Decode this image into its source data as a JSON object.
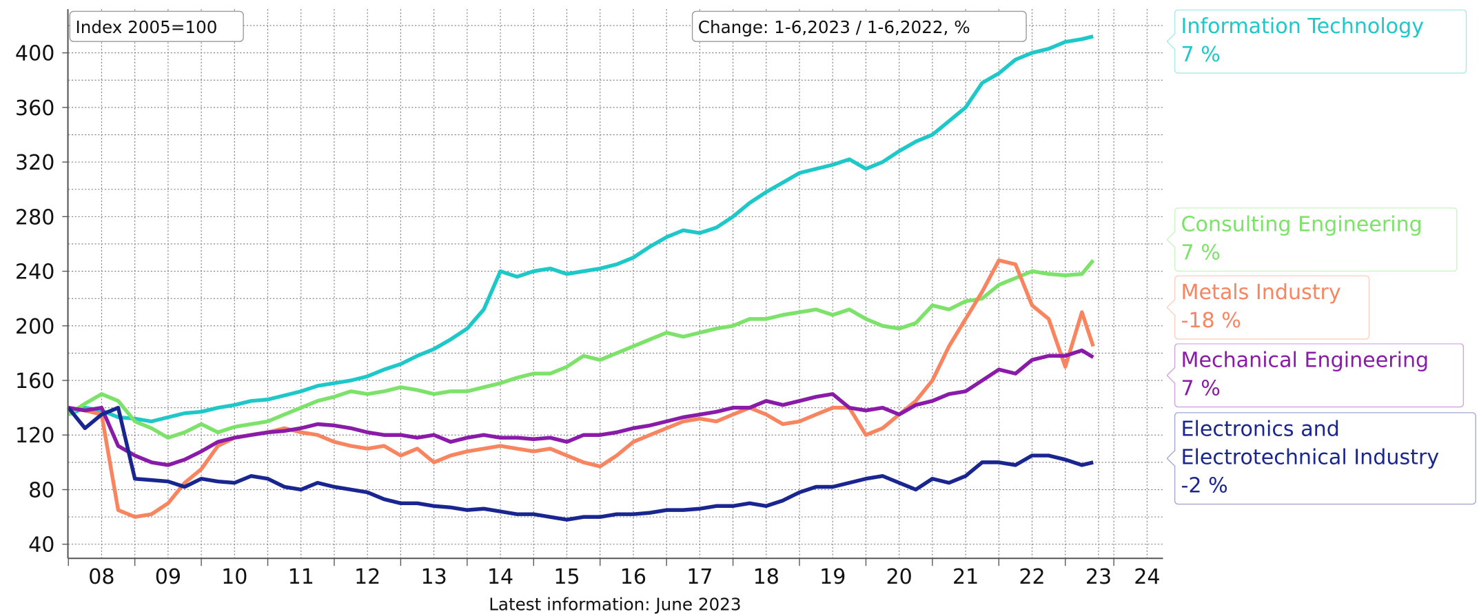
{
  "chart_data": {
    "type": "line",
    "annotations": [
      "Index 2005=100",
      "Change: 1-6,2023 / 1-6,2022, %"
    ],
    "xlabel": "Latest information: June 2023",
    "x": [
      2008,
      2008.25,
      2008.5,
      2008.75,
      2009,
      2009.25,
      2009.5,
      2009.75,
      2010,
      2010.25,
      2010.5,
      2010.75,
      2011,
      2011.25,
      2011.5,
      2011.75,
      2012,
      2012.25,
      2012.5,
      2012.75,
      2013,
      2013.25,
      2013.5,
      2013.75,
      2014,
      2014.25,
      2014.5,
      2014.75,
      2015,
      2015.25,
      2015.5,
      2015.75,
      2016,
      2016.25,
      2016.5,
      2016.75,
      2017,
      2017.25,
      2017.5,
      2017.75,
      2018,
      2018.25,
      2018.5,
      2018.75,
      2019,
      2019.25,
      2019.5,
      2019.75,
      2020,
      2020.25,
      2020.5,
      2020.75,
      2021,
      2021.25,
      2021.5,
      2021.75,
      2022,
      2022.25,
      2022.5,
      2022.75,
      2023,
      2023.25,
      2023.42
    ],
    "xlim": [
      2008,
      2024.47
    ],
    "xticks": [
      {
        "value": 2008.5,
        "label": "08"
      },
      {
        "value": 2009.5,
        "label": "09"
      },
      {
        "value": 2010.5,
        "label": "10"
      },
      {
        "value": 2011.5,
        "label": "11"
      },
      {
        "value": 2012.5,
        "label": "12"
      },
      {
        "value": 2013.5,
        "label": "13"
      },
      {
        "value": 2014.5,
        "label": "14"
      },
      {
        "value": 2015.5,
        "label": "15"
      },
      {
        "value": 2016.5,
        "label": "16"
      },
      {
        "value": 2017.5,
        "label": "17"
      },
      {
        "value": 2018.5,
        "label": "18"
      },
      {
        "value": 2019.5,
        "label": "19"
      },
      {
        "value": 2020.5,
        "label": "20"
      },
      {
        "value": 2021.5,
        "label": "21"
      },
      {
        "value": 2022.5,
        "label": "22"
      },
      {
        "value": 2023.5,
        "label": "23"
      },
      {
        "value": 2024.23,
        "label": "24"
      }
    ],
    "ylim": [
      30,
      432
    ],
    "yticks": [
      40,
      80,
      120,
      160,
      200,
      240,
      280,
      320,
      360,
      400
    ],
    "grid": true,
    "series": [
      {
        "name": "Information Technology",
        "change": "7 %",
        "color": "#1ec8c8",
        "values": [
          135,
          140,
          138,
          133,
          132,
          130,
          133,
          136,
          137,
          140,
          142,
          145,
          146,
          149,
          152,
          156,
          158,
          160,
          163,
          168,
          172,
          178,
          183,
          190,
          198,
          212,
          240,
          236,
          240,
          242,
          238,
          240,
          242,
          245,
          250,
          258,
          265,
          270,
          268,
          272,
          280,
          290,
          298,
          305,
          312,
          315,
          318,
          322,
          315,
          320,
          328,
          335,
          340,
          350,
          360,
          378,
          385,
          395,
          400,
          403,
          408,
          410,
          412
        ]
      },
      {
        "name": "Consulting Engineering",
        "change": "7 %",
        "color": "#7de26a",
        "values": [
          135,
          143,
          150,
          145,
          130,
          125,
          118,
          122,
          128,
          122,
          126,
          128,
          130,
          135,
          140,
          145,
          148,
          152,
          150,
          152,
          155,
          153,
          150,
          152,
          152,
          155,
          158,
          162,
          165,
          165,
          170,
          178,
          175,
          180,
          185,
          190,
          195,
          192,
          195,
          198,
          200,
          205,
          205,
          208,
          210,
          212,
          208,
          212,
          205,
          200,
          198,
          202,
          215,
          212,
          218,
          220,
          230,
          235,
          240,
          238,
          237,
          238,
          248
        ]
      },
      {
        "name": "Metals Industry",
        "change": "-18 %",
        "color": "#f8855f",
        "values": [
          140,
          138,
          135,
          65,
          60,
          62,
          70,
          85,
          95,
          112,
          118,
          120,
          122,
          125,
          122,
          120,
          115,
          112,
          110,
          112,
          105,
          110,
          100,
          105,
          108,
          110,
          112,
          110,
          108,
          110,
          105,
          100,
          97,
          105,
          115,
          120,
          125,
          130,
          132,
          130,
          135,
          140,
          135,
          128,
          130,
          135,
          140,
          140,
          120,
          125,
          135,
          145,
          160,
          185,
          205,
          225,
          248,
          245,
          215,
          205,
          170,
          210,
          185
        ]
      },
      {
        "name": "Mechanical Engineering",
        "change": "7 %",
        "color": "#8a1aa8",
        "values": [
          140,
          138,
          140,
          112,
          105,
          100,
          98,
          102,
          108,
          115,
          118,
          120,
          122,
          123,
          125,
          128,
          127,
          125,
          122,
          120,
          120,
          118,
          120,
          115,
          118,
          120,
          118,
          118,
          117,
          118,
          115,
          120,
          120,
          122,
          125,
          127,
          130,
          133,
          135,
          137,
          140,
          140,
          145,
          142,
          145,
          148,
          150,
          140,
          138,
          140,
          135,
          142,
          145,
          150,
          152,
          160,
          168,
          165,
          175,
          178,
          178,
          182,
          177
        ]
      },
      {
        "name": "Electronics and Electrotechnical Industry",
        "change": "-2 %",
        "color": "#1a2690",
        "values": [
          140,
          125,
          135,
          140,
          88,
          87,
          86,
          82,
          88,
          86,
          85,
          90,
          88,
          82,
          80,
          85,
          82,
          80,
          78,
          73,
          70,
          70,
          68,
          67,
          65,
          66,
          64,
          62,
          62,
          60,
          58,
          60,
          60,
          62,
          62,
          63,
          65,
          65,
          66,
          68,
          68,
          70,
          68,
          72,
          78,
          82,
          82,
          85,
          88,
          90,
          85,
          80,
          88,
          85,
          90,
          100,
          100,
          98,
          105,
          105,
          102,
          98,
          100
        ]
      }
    ]
  }
}
